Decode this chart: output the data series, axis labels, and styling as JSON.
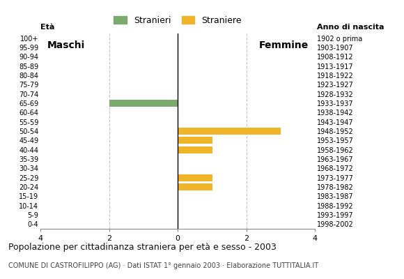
{
  "age_groups": [
    "100+",
    "95-99",
    "90-94",
    "85-89",
    "80-84",
    "75-79",
    "70-74",
    "65-69",
    "60-64",
    "55-59",
    "50-54",
    "45-49",
    "40-44",
    "35-39",
    "30-34",
    "25-29",
    "20-24",
    "15-19",
    "10-14",
    "5-9",
    "0-4"
  ],
  "birth_years": [
    "1902 o prima",
    "1903-1907",
    "1908-1912",
    "1913-1917",
    "1918-1922",
    "1923-1927",
    "1928-1932",
    "1933-1937",
    "1938-1942",
    "1943-1947",
    "1948-1952",
    "1953-1957",
    "1958-1962",
    "1963-1967",
    "1968-1972",
    "1973-1977",
    "1978-1982",
    "1983-1987",
    "1988-1992",
    "1993-1997",
    "1998-2002"
  ],
  "males": [
    0,
    0,
    0,
    0,
    0,
    0,
    0,
    2,
    0,
    0,
    0,
    0,
    0,
    0,
    0,
    0,
    0,
    0,
    0,
    0,
    0
  ],
  "females": [
    0,
    0,
    0,
    0,
    0,
    0,
    0,
    0,
    0,
    0,
    3,
    1,
    1,
    0,
    0,
    1,
    1,
    0,
    0,
    0,
    0
  ],
  "male_color": "#7aaa6e",
  "female_color": "#f0b429",
  "title": "Popolazione per cittadinanza straniera per età e sesso - 2003",
  "subtitle": "COMUNE DI CASTROFILIPPO (AG) · Dati ISTAT 1° gennaio 2003 · Elaborazione TUTTITALIA.IT",
  "legend_male": "Stranieri",
  "legend_female": "Straniere",
  "xlim": 4,
  "label_eta": "Età",
  "label_anno": "Anno di nascita",
  "label_maschi": "Maschi",
  "label_femmine": "Femmine",
  "background_color": "#ffffff",
  "grid_color": "#c8c8c8",
  "bar_height": 0.75
}
